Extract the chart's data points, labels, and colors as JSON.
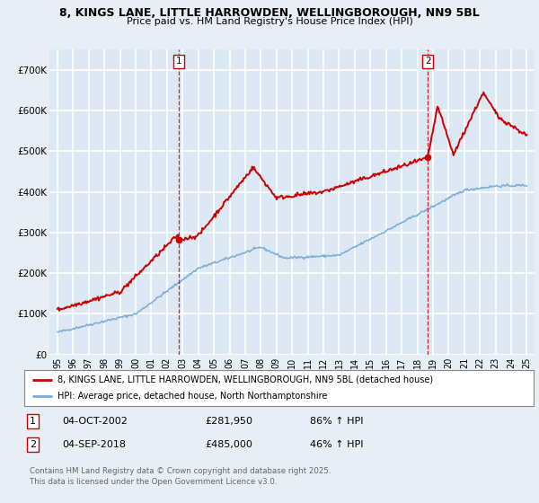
{
  "title": "8, KINGS LANE, LITTLE HARROWDEN, WELLINGBOROUGH, NN9 5BL",
  "subtitle": "Price paid vs. HM Land Registry's House Price Index (HPI)",
  "background_color": "#e8eef5",
  "plot_bg_color": "#dce8f4",
  "grid_color": "#ffffff",
  "red_line_color": "#cc0000",
  "blue_line_color": "#7aadd4",
  "purchase1_year": 2002.75,
  "purchase1_price": 281950,
  "purchase2_year": 2018.67,
  "purchase2_price": 485000,
  "ylim": [
    0,
    750000
  ],
  "yticks": [
    0,
    100000,
    200000,
    300000,
    400000,
    500000,
    600000,
    700000
  ],
  "xlim": [
    1994.5,
    2025.5
  ],
  "xticks": [
    1995,
    1996,
    1997,
    1998,
    1999,
    2000,
    2001,
    2002,
    2003,
    2004,
    2005,
    2006,
    2007,
    2008,
    2009,
    2010,
    2011,
    2012,
    2013,
    2014,
    2015,
    2016,
    2017,
    2018,
    2019,
    2020,
    2021,
    2022,
    2023,
    2024,
    2025
  ],
  "legend_label_red": "8, KINGS LANE, LITTLE HARROWDEN, WELLINGBOROUGH, NN9 5BL (detached house)",
  "legend_label_blue": "HPI: Average price, detached house, North Northamptonshire",
  "footer": "Contains HM Land Registry data © Crown copyright and database right 2025.\nThis data is licensed under the Open Government Licence v3.0."
}
